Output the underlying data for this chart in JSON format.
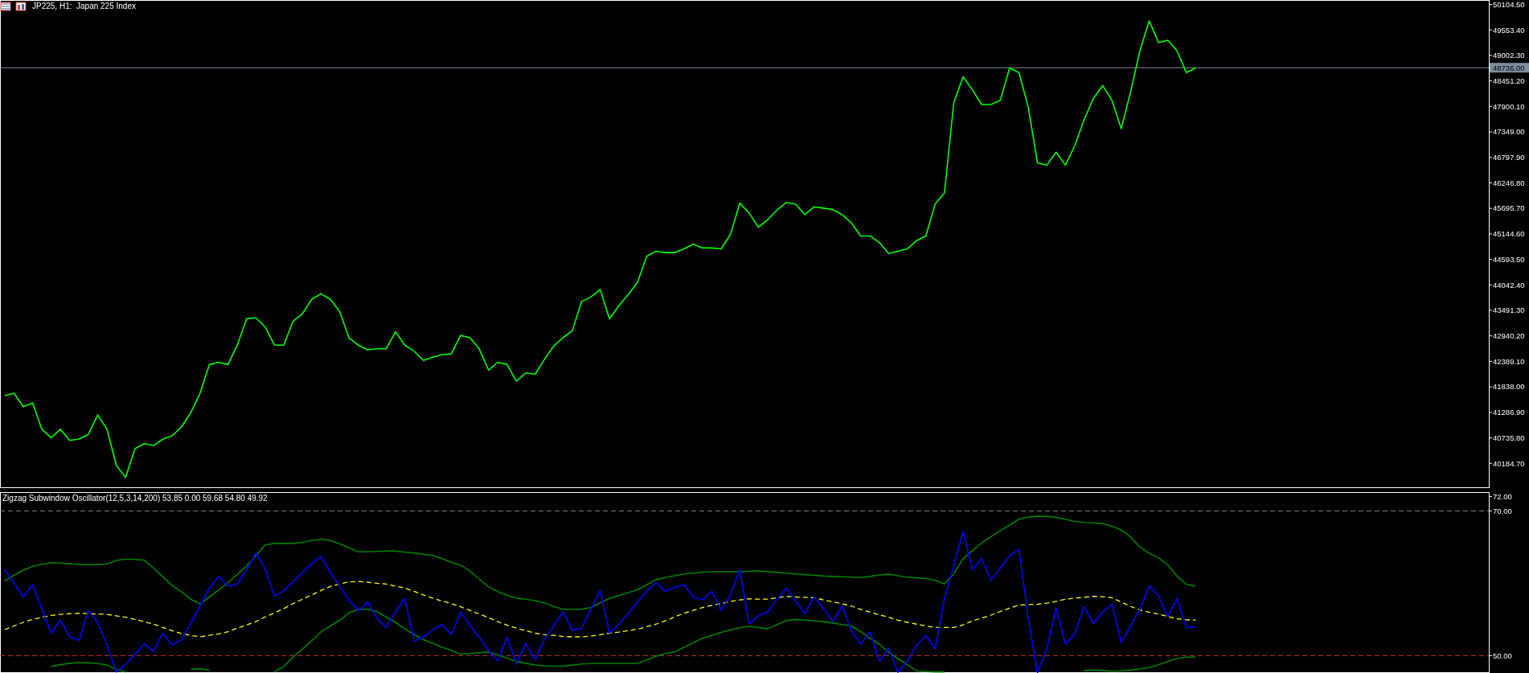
{
  "chart_data": [
    {
      "type": "line",
      "title": "JP225, H1:  Japan 225 Index",
      "tick_labels": "y",
      "categories": [
        null,
        null,
        null,
        null,
        null,
        null,
        null,
        null,
        null,
        null,
        null,
        null,
        null,
        null,
        null,
        null,
        null,
        null,
        null,
        null,
        null,
        null,
        null,
        null,
        null,
        null,
        null,
        null,
        null,
        null,
        null,
        null,
        null,
        null,
        null,
        null,
        null,
        null,
        null,
        null,
        null,
        null,
        null,
        null,
        null,
        null,
        null,
        null,
        null,
        null,
        null,
        null,
        null,
        null,
        null,
        null,
        null,
        null,
        null,
        null,
        null,
        null,
        null,
        null,
        null,
        null,
        null,
        null,
        null,
        null,
        null,
        null,
        null,
        null,
        null,
        null,
        null,
        null,
        null,
        null,
        null,
        null,
        null,
        null,
        null,
        null,
        null,
        null,
        null,
        null,
        null,
        null,
        null,
        null,
        null,
        null,
        null,
        null,
        null,
        null,
        null,
        null,
        null,
        null,
        null,
        null,
        null,
        null,
        null,
        null,
        null,
        null,
        null,
        null,
        null,
        null,
        null,
        null,
        null,
        null,
        null,
        null,
        null,
        null,
        null,
        null,
        null,
        null,
        null,
        null,
        null,
        null,
        null,
        null,
        null,
        null,
        null,
        null,
        null,
        null,
        null,
        null,
        null,
        null,
        null,
        null,
        null,
        null,
        null,
        null,
        null,
        null,
        null,
        null,
        null,
        null,
        null,
        null,
        null,
        null
      ],
      "series": [
        {
          "color": "#00ff00",
          "values": [
            41650,
            41700,
            41410,
            41490,
            40920,
            40740,
            40920,
            40680,
            40710,
            40810,
            41230,
            40920,
            40140,
            39880,
            40500,
            40610,
            40570,
            40710,
            40780,
            40970,
            41280,
            41700,
            42320,
            42370,
            42320,
            42740,
            43310,
            43330,
            43130,
            42740,
            42740,
            43260,
            43420,
            43730,
            43850,
            43730,
            43470,
            42900,
            42740,
            42640,
            42660,
            42660,
            43030,
            42740,
            42610,
            42410,
            42480,
            42530,
            42550,
            42950,
            42900,
            42660,
            42200,
            42370,
            42320,
            41960,
            42140,
            42110,
            42430,
            42720,
            42900,
            43050,
            43680,
            43780,
            43940,
            43310,
            43590,
            43830,
            44090,
            44660,
            44770,
            44740,
            44740,
            44820,
            44920,
            44840,
            44840,
            44820,
            45130,
            45810,
            45600,
            45290,
            45450,
            45660,
            45820,
            45790,
            45560,
            45730,
            45700,
            45670,
            45560,
            45380,
            45100,
            45100,
            44960,
            44720,
            44770,
            44820,
            45000,
            45100,
            45790,
            46030,
            47980,
            48540,
            48260,
            47940,
            47940,
            48030,
            48730,
            48630,
            47890,
            46680,
            46630,
            46910,
            46630,
            47050,
            47610,
            48070,
            48350,
            48030,
            47420,
            48210,
            49100,
            49750,
            49280,
            49330,
            49100,
            48630,
            48730,
            null,
            null,
            null,
            null,
            null,
            null,
            null,
            null,
            null,
            null,
            null,
            null,
            null,
            null,
            null,
            null,
            null,
            null,
            null,
            null,
            null,
            null,
            null,
            null,
            null,
            null,
            null,
            null,
            null,
            null,
            null
          ]
        }
      ],
      "ylim": [
        39650,
        50200
      ],
      "yticks": [
        {
          "value": 50104.5,
          "label": "50104.50"
        },
        {
          "value": 49553.4,
          "label": "49553.40"
        },
        {
          "value": 49002.3,
          "label": "49002.30"
        },
        {
          "value": 48451.2,
          "label": "48451.20"
        },
        {
          "value": 47900.1,
          "label": "47900.10"
        },
        {
          "value": 47349,
          "label": "47349.00"
        },
        {
          "value": 46797.9,
          "label": "46797.90"
        },
        {
          "value": 46246.8,
          "label": "46246.80"
        },
        {
          "value": 45695.7,
          "label": "45695.70"
        },
        {
          "value": 45144.6,
          "label": "45144.60"
        },
        {
          "value": 44593.5,
          "label": "44593.50"
        },
        {
          "value": 44042.4,
          "label": "44042.40"
        },
        {
          "value": 43491.3,
          "label": "43491.30"
        },
        {
          "value": 42940.2,
          "label": "42940.20"
        },
        {
          "value": 42389.1,
          "label": "42389.10"
        },
        {
          "value": 41838,
          "label": "41838.00"
        },
        {
          "value": 41286.9,
          "label": "41286.90"
        },
        {
          "value": 40735.8,
          "label": "40735.80"
        },
        {
          "value": 40184.7,
          "label": "40184.70"
        }
      ],
      "ref_lines": [
        {
          "axis": "y",
          "value": 48736,
          "label": "48736.00",
          "color": "#7f8c9b"
        }
      ]
    },
    {
      "type": "line",
      "title": "Zigzag Subwindow Oscillator(12,5,3,14,200) 53.85 0.00 59.68 54.80 49.92",
      "tick_labels": "y",
      "categories": [
        null,
        null,
        null,
        null,
        null,
        null,
        null,
        null,
        null,
        null,
        null,
        null,
        null,
        null,
        null,
        null,
        null,
        null,
        null,
        null,
        null,
        null,
        null,
        null,
        null,
        null,
        null,
        null,
        null,
        null,
        null,
        null,
        null,
        null,
        null,
        null,
        null,
        null,
        null,
        null,
        null,
        null,
        null,
        null,
        null,
        null,
        null,
        null,
        null,
        null,
        null,
        null,
        null,
        null,
        null,
        null,
        null,
        null,
        null,
        null,
        null,
        null,
        null,
        null,
        null,
        null,
        null,
        null,
        null,
        null,
        null,
        null,
        null,
        null,
        null,
        null,
        null,
        null,
        null,
        null,
        null,
        null,
        null,
        null,
        null,
        null,
        null,
        null,
        null,
        null,
        null,
        null,
        null,
        null,
        null,
        null,
        null,
        null,
        null,
        null,
        null,
        null,
        null,
        null,
        null,
        null,
        null,
        null,
        null,
        null,
        null,
        null,
        null,
        null,
        null,
        null,
        null,
        null,
        null,
        null,
        null,
        null,
        null,
        null,
        null,
        null,
        null,
        null,
        null,
        null,
        null,
        null,
        null,
        null,
        null,
        null,
        null,
        null,
        null,
        null,
        null,
        null,
        null,
        null,
        null,
        null,
        null,
        null,
        null,
        null,
        null,
        null,
        null,
        null,
        null,
        null,
        null,
        null,
        null,
        null
      ],
      "series": [
        {
          "color": "#008000",
          "values": [
            60.3,
            61.1,
            61.8,
            62.35,
            62.6,
            62.85,
            62.8,
            62.7,
            62.6,
            62.6,
            62.6,
            62.65,
            63.15,
            63.35,
            63.3,
            63.2,
            62.1,
            60.9,
            59.7,
            58.8,
            57.8,
            57.15,
            58.1,
            59.05,
            60.1,
            61.2,
            62.4,
            63.8,
            65.3,
            65.5,
            65.5,
            65.5,
            65.65,
            65.9,
            66.1,
            65.9,
            65.45,
            64.9,
            64.35,
            64.35,
            64.4,
            64.45,
            64.45,
            64.3,
            64.2,
            64.0,
            63.85,
            63.4,
            62.9,
            62.5,
            61.7,
            60.6,
            59.5,
            58.85,
            58.35,
            57.95,
            57.8,
            57.6,
            57.3,
            56.8,
            56.4,
            56.4,
            56.4,
            56.65,
            57.3,
            57.9,
            58.3,
            58.7,
            59.1,
            59.8,
            60.5,
            60.8,
            61.05,
            61.3,
            61.4,
            61.55,
            61.6,
            61.6,
            61.6,
            61.6,
            61.65,
            61.7,
            61.6,
            61.5,
            61.4,
            61.3,
            61.2,
            61.1,
            61.0,
            60.95,
            60.9,
            60.85,
            60.8,
            60.95,
            61.15,
            61.25,
            61.05,
            60.85,
            60.75,
            60.65,
            60.4,
            59.9,
            61.3,
            63.4,
            64.5,
            65.6,
            66.45,
            67.25,
            68.05,
            68.85,
            69.15,
            69.25,
            69.25,
            69.1,
            68.85,
            68.55,
            68.4,
            68.35,
            68.25,
            67.9,
            67.35,
            66.4,
            65.0,
            64.15,
            63.5,
            62.55,
            61.0,
            59.85,
            59.6,
            null,
            null,
            null,
            null,
            null,
            null,
            null,
            null,
            null,
            null,
            null,
            null,
            null,
            null,
            null,
            null,
            null,
            null,
            null,
            null,
            null,
            null,
            null,
            null,
            null,
            null,
            null,
            null,
            null,
            null,
            null
          ]
        },
        {
          "color": "#008000",
          "values": [
            null,
            null,
            null,
            null,
            null,
            48.5,
            48.75,
            48.95,
            49.05,
            49.0,
            48.9,
            48.7,
            48.1,
            47.75,
            null,
            null,
            null,
            null,
            null,
            null,
            48.1,
            48.2,
            48.0,
            null,
            null,
            null,
            null,
            null,
            null,
            47.8,
            48.5,
            49.8,
            50.9,
            52.05,
            53.3,
            54.1,
            54.9,
            55.9,
            56.4,
            56.4,
            56.1,
            55.35,
            54.6,
            53.7,
            52.9,
            52.2,
            51.7,
            51.15,
            50.7,
            50.2,
            50.3,
            50.4,
            50.5,
            50.1,
            49.65,
            49.2,
            48.95,
            48.7,
            48.6,
            48.55,
            48.55,
            48.7,
            48.85,
            48.9,
            48.9,
            48.9,
            48.9,
            48.9,
            48.9,
            49.4,
            49.9,
            50.3,
            50.5,
            51.15,
            51.8,
            52.4,
            52.8,
            53.2,
            53.55,
            53.85,
            54.05,
            53.9,
            53.7,
            54.3,
            54.85,
            55.0,
            54.9,
            54.8,
            54.7,
            54.5,
            54.3,
            54.1,
            53.3,
            52.4,
            51.6,
            50.45,
            49.6,
            48.75,
            47.9,
            47.8,
            47.75,
            47.75,
            null,
            null,
            null,
            null,
            null,
            null,
            null,
            null,
            null,
            null,
            null,
            null,
            null,
            null,
            47.95,
            48.0,
            47.95,
            47.85,
            47.9,
            48.0,
            48.15,
            48.35,
            48.75,
            49.2,
            49.6,
            49.8,
            49.8,
            null,
            null,
            null,
            null,
            null,
            null,
            null,
            null,
            null,
            null,
            null,
            null,
            null,
            null,
            null,
            null,
            null,
            null,
            null,
            null,
            null,
            null,
            null,
            null,
            null,
            null,
            null,
            null,
            null,
            null,
            null
          ]
        },
        {
          "color": "#ffff00",
          "line_style": "dashed",
          "values": [
            53.6,
            54.1,
            54.6,
            55.0,
            55.3,
            55.55,
            55.7,
            55.8,
            55.85,
            55.8,
            55.75,
            55.7,
            55.5,
            55.3,
            55.0,
            54.7,
            54.35,
            53.9,
            53.45,
            53.05,
            52.8,
            52.6,
            52.8,
            53.0,
            53.3,
            53.8,
            54.25,
            54.7,
            55.35,
            55.9,
            56.5,
            57.2,
            57.8,
            58.4,
            59.0,
            59.55,
            59.9,
            60.2,
            60.25,
            60.15,
            60.0,
            59.9,
            59.6,
            59.35,
            58.9,
            58.4,
            57.95,
            57.55,
            57.2,
            56.75,
            56.25,
            55.75,
            55.25,
            54.7,
            54.2,
            53.8,
            53.45,
            53.1,
            52.9,
            52.8,
            52.65,
            52.6,
            52.6,
            52.7,
            52.9,
            53.1,
            53.25,
            53.45,
            53.65,
            54.0,
            54.35,
            54.8,
            55.35,
            55.85,
            56.25,
            56.65,
            56.95,
            57.2,
            57.5,
            57.7,
            57.85,
            57.8,
            57.8,
            58.0,
            58.2,
            58.1,
            58.05,
            58.0,
            57.7,
            57.45,
            57.15,
            56.85,
            56.4,
            56.0,
            55.65,
            55.3,
            54.9,
            54.6,
            54.35,
            54.1,
            53.9,
            53.9,
            53.9,
            54.25,
            54.8,
            55.2,
            55.6,
            56.1,
            56.55,
            57.0,
            57.05,
            57.1,
            57.25,
            57.5,
            57.8,
            57.95,
            58.05,
            58.2,
            58.15,
            58.0,
            57.4,
            56.8,
            56.3,
            56.0,
            55.75,
            55.4,
            55.1,
            54.95,
            54.9,
            null,
            null,
            null,
            null,
            null,
            null,
            null,
            null,
            null,
            null,
            null,
            null,
            null,
            null,
            null,
            null,
            null,
            null,
            null,
            null,
            null,
            null,
            null,
            null,
            null,
            null,
            null,
            null,
            null,
            null,
            null
          ]
        },
        {
          "color": "#0000ff",
          "values": [
            61.9,
            60.0,
            58.1,
            59.8,
            56.5,
            53.1,
            54.9,
            52.6,
            52.1,
            56.2,
            54.6,
            51.5,
            47.75,
            48.8,
            50.2,
            51.6,
            50.6,
            53.1,
            51.5,
            52.2,
            54.5,
            56.9,
            59.3,
            60.95,
            59.6,
            59.9,
            61.85,
            64.2,
            62.0,
            58.2,
            59.0,
            60.2,
            61.5,
            62.7,
            63.7,
            61.5,
            59.6,
            57.7,
            56.2,
            57.4,
            55.2,
            53.9,
            56.0,
            57.9,
            52.0,
            52.6,
            53.5,
            54.3,
            52.9,
            56.0,
            54.2,
            52.5,
            50.7,
            49.3,
            52.6,
            48.8,
            51.7,
            49.45,
            52.2,
            54.1,
            56.05,
            53.5,
            53.8,
            56.4,
            59.0,
            53.1,
            54.3,
            55.8,
            57.4,
            58.9,
            60.1,
            58.9,
            59.4,
            59.8,
            58.1,
            57.7,
            58.9,
            56.25,
            58.4,
            61.9,
            54.4,
            55.5,
            56.05,
            57.8,
            59.3,
            57.6,
            55.8,
            58.1,
            56.5,
            54.7,
            56.9,
            53.4,
            51.6,
            53.3,
            49.2,
            51.1,
            47.7,
            49.2,
            51.4,
            52.8,
            50.9,
            57.9,
            62.5,
            67.15,
            61.9,
            63.4,
            60.4,
            62.1,
            63.8,
            64.7,
            55.2,
            47.65,
            50.9,
            56.6,
            51.6,
            53.0,
            56.8,
            54.4,
            56.0,
            57.1,
            51.8,
            54.1,
            56.4,
            59.6,
            58.3,
            55.4,
            57.9,
            53.9,
            53.9,
            null,
            null,
            null,
            null,
            null,
            null,
            null,
            null,
            null,
            null,
            null,
            null,
            null,
            null,
            null,
            null,
            null,
            null,
            null,
            null,
            null,
            null,
            null,
            null,
            null,
            null,
            null,
            null,
            null,
            null,
            null
          ]
        }
      ],
      "ylim": [
        47.6,
        72.6
      ],
      "yticks": [
        {
          "value": 72,
          "label": "72.00"
        },
        {
          "value": 70,
          "label": "70.00"
        },
        {
          "value": 50,
          "label": "50.00"
        }
      ],
      "ref_lines": [
        {
          "axis": "y",
          "value": 70,
          "color": "#808080",
          "line_style": "dashed"
        },
        {
          "axis": "y",
          "value": 50,
          "color": "#c83232",
          "line_style": "dashed"
        }
      ]
    }
  ]
}
